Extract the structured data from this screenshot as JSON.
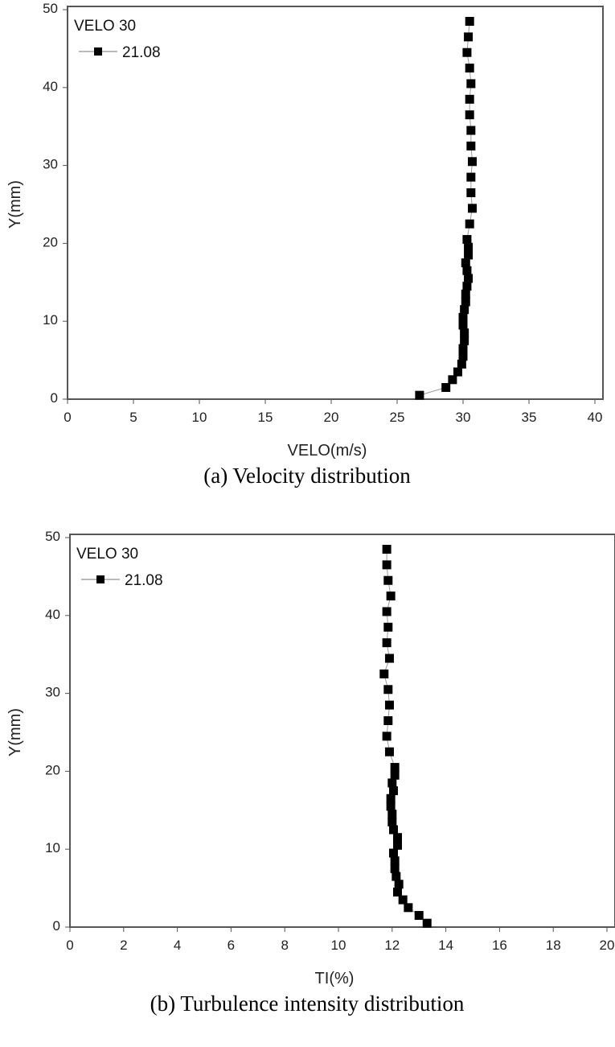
{
  "chart_data": [
    {
      "type": "scatter",
      "xlabel": "VELO(m/s)",
      "ylabel": "Y(mm)",
      "xlim": [
        0,
        40
      ],
      "ylim": [
        0,
        50
      ],
      "xticks": [
        0,
        5,
        10,
        15,
        20,
        25,
        30,
        35,
        40
      ],
      "yticks": [
        0,
        10,
        20,
        30,
        40,
        50
      ],
      "legend_title": "VELO 30",
      "legend_placement": "top-left",
      "caption": "(a)  Velocity  distribution",
      "series": [
        {
          "name": "21.08",
          "color": "#000000",
          "marker": "square",
          "y": [
            0.5,
            1.5,
            2.5,
            3.5,
            4.5,
            5.5,
            6.5,
            7.5,
            8.5,
            9.5,
            10.5,
            11.5,
            12.5,
            13.5,
            14.5,
            15.5,
            16.5,
            17.5,
            18.5,
            19.5,
            20.5,
            22.5,
            24.5,
            26.5,
            28.5,
            30.5,
            32.5,
            34.5,
            36.5,
            38.5,
            40.5,
            42.5,
            44.5,
            46.5,
            48.5
          ],
          "x": [
            26.7,
            28.7,
            29.2,
            29.6,
            29.9,
            30.0,
            30.0,
            30.1,
            30.1,
            30.0,
            30.0,
            30.1,
            30.2,
            30.2,
            30.3,
            30.4,
            30.3,
            30.2,
            30.4,
            30.4,
            30.3,
            30.5,
            30.7,
            30.6,
            30.6,
            30.7,
            30.6,
            30.6,
            30.5,
            30.5,
            30.6,
            30.5,
            30.3,
            30.4,
            30.5
          ]
        }
      ]
    },
    {
      "type": "scatter",
      "xlabel": "TI(%)",
      "ylabel": "Y(mm)",
      "xlim": [
        0,
        20
      ],
      "ylim": [
        0,
        50
      ],
      "xticks": [
        0,
        2,
        4,
        6,
        8,
        10,
        12,
        14,
        16,
        18,
        20
      ],
      "yticks": [
        0,
        10,
        20,
        30,
        40,
        50
      ],
      "legend_title": "VELO 30",
      "legend_placement": "top-left",
      "caption": "(b)  Turbulence  intensity  distribution",
      "series": [
        {
          "name": "21.08",
          "color": "#000000",
          "marker": "square",
          "y": [
            0.5,
            1.5,
            2.5,
            3.5,
            4.5,
            5.5,
            6.5,
            7.5,
            8.5,
            9.5,
            10.5,
            11.5,
            12.5,
            13.5,
            14.5,
            15.5,
            16.5,
            17.5,
            18.5,
            19.5,
            20.5,
            22.5,
            24.5,
            26.5,
            28.5,
            30.5,
            32.5,
            34.5,
            36.5,
            38.5,
            40.5,
            42.5,
            44.5,
            46.5,
            48.5
          ],
          "x": [
            13.3,
            13.0,
            12.6,
            12.4,
            12.2,
            12.25,
            12.15,
            12.1,
            12.1,
            12.05,
            12.2,
            12.2,
            12.05,
            12.0,
            12.0,
            11.95,
            11.95,
            12.05,
            12.0,
            12.1,
            12.1,
            11.9,
            11.8,
            11.85,
            11.9,
            11.85,
            11.7,
            11.9,
            11.8,
            11.85,
            11.8,
            11.95,
            11.85,
            11.8,
            11.8
          ]
        }
      ]
    }
  ]
}
